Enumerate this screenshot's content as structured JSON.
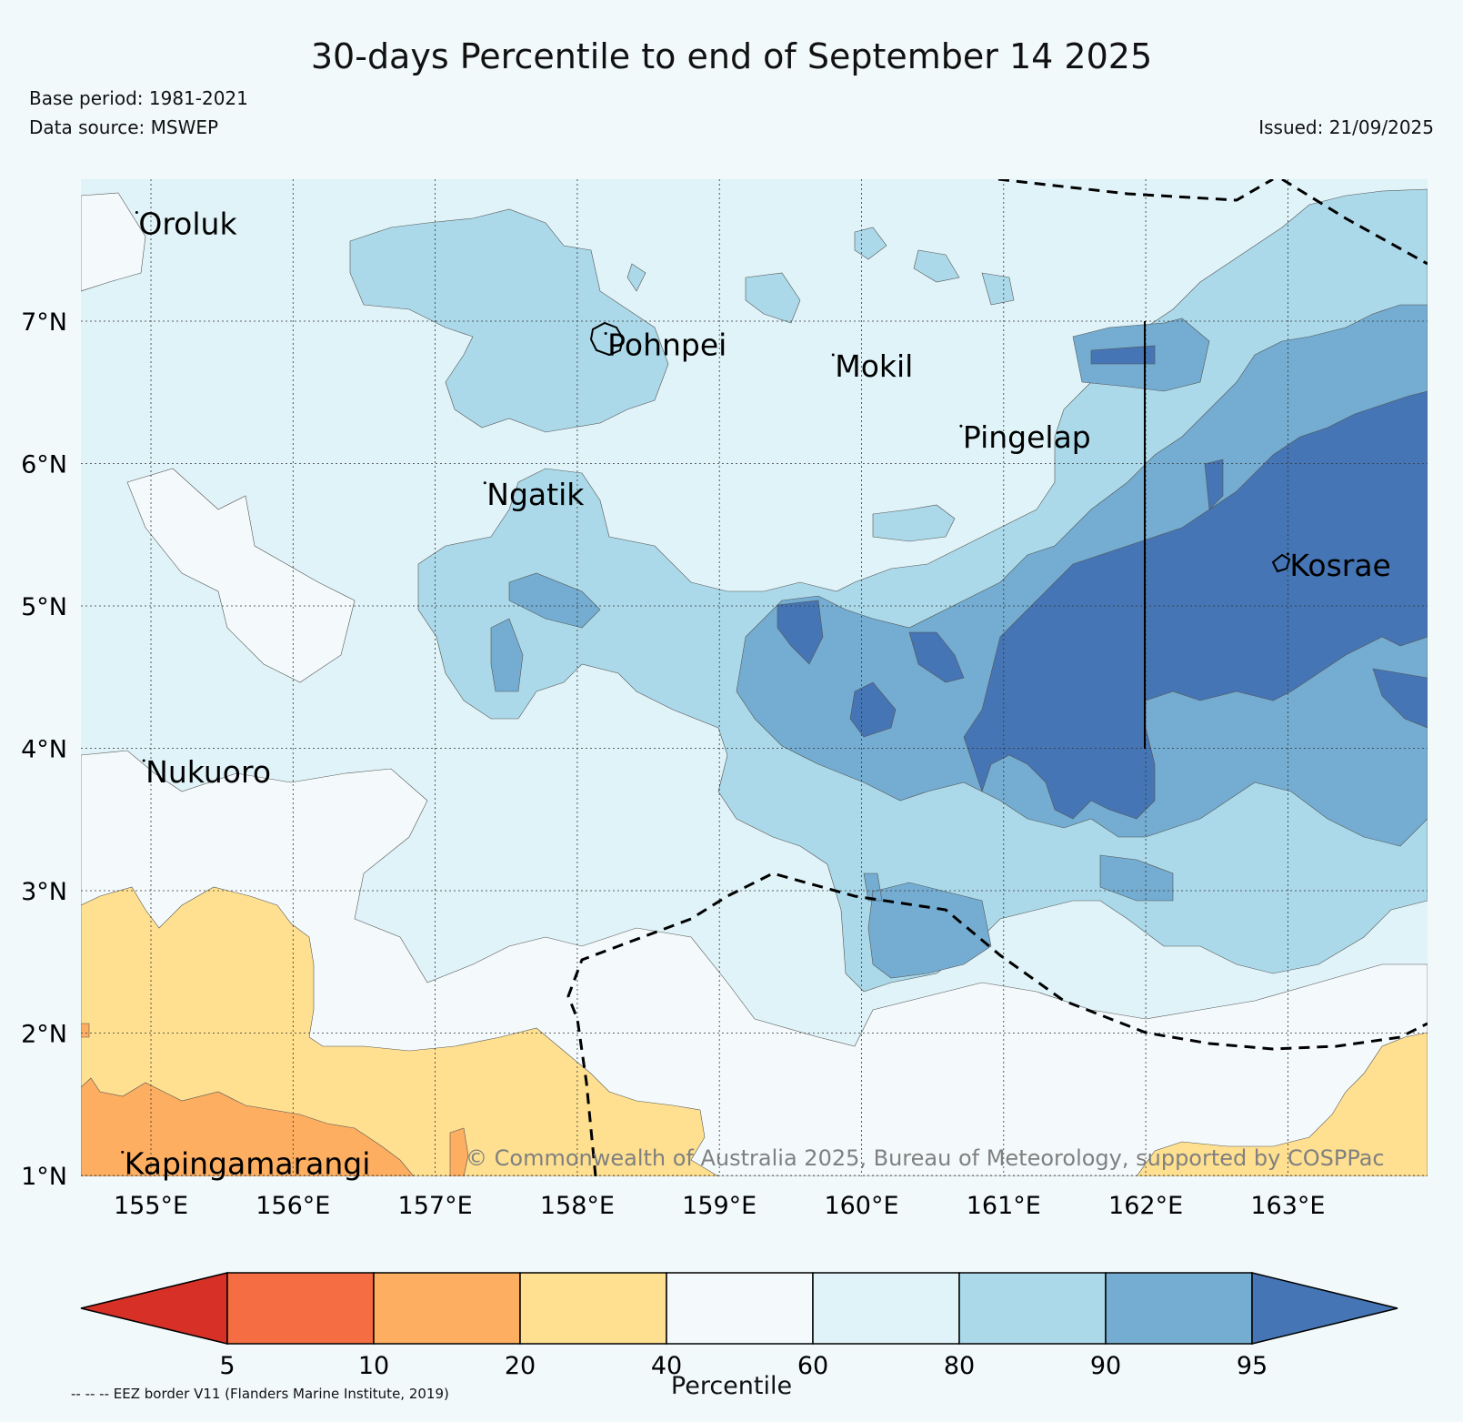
{
  "header": {
    "title": "30-days Percentile to end of September 14 2025",
    "base_period": "Base period: 1981-2021",
    "data_source": "Data source: MSWEP",
    "issued": "Issued: 21/09/2025"
  },
  "map": {
    "lon_ticks": [
      "155°E",
      "156°E",
      "157°E",
      "158°E",
      "159°E",
      "160°E",
      "161°E",
      "162°E",
      "163°E"
    ],
    "lat_ticks": [
      "7°N",
      "6°N",
      "5°N",
      "4°N",
      "3°N",
      "2°N",
      "1°N"
    ],
    "places": [
      {
        "name": "Oroluk",
        "lon": 154.9,
        "lat": 7.7
      },
      {
        "name": "Pohnpei",
        "lon": 158.2,
        "lat": 6.85
      },
      {
        "name": "Mokil",
        "lon": 159.8,
        "lat": 6.7
      },
      {
        "name": "Pingelap",
        "lon": 160.7,
        "lat": 6.2
      },
      {
        "name": "Ngatik",
        "lon": 157.35,
        "lat": 5.8
      },
      {
        "name": "Kosrae",
        "lon": 163.0,
        "lat": 5.3
      },
      {
        "name": "Nukuoro",
        "lon": 154.95,
        "lat": 3.85
      },
      {
        "name": "Kapingamarangi",
        "lon": 154.8,
        "lat": 1.1
      }
    ],
    "copyright": "© Commonwealth of Australia 2025, Bureau of Meteorology, supported by COSPPac"
  },
  "colorbar": {
    "label": "Percentile",
    "ticks": [
      "5",
      "10",
      "20",
      "40",
      "60",
      "80",
      "90",
      "95"
    ],
    "colors": [
      "#d73027",
      "#f46d43",
      "#fdae61",
      "#fee090",
      "#f4fafc",
      "#e0f3f8",
      "#abd9e9",
      "#74add1",
      "#4575b4"
    ]
  },
  "legend_note": "-- -- -- EEZ border V11 (Flanders Marine Institute, 2019)"
}
